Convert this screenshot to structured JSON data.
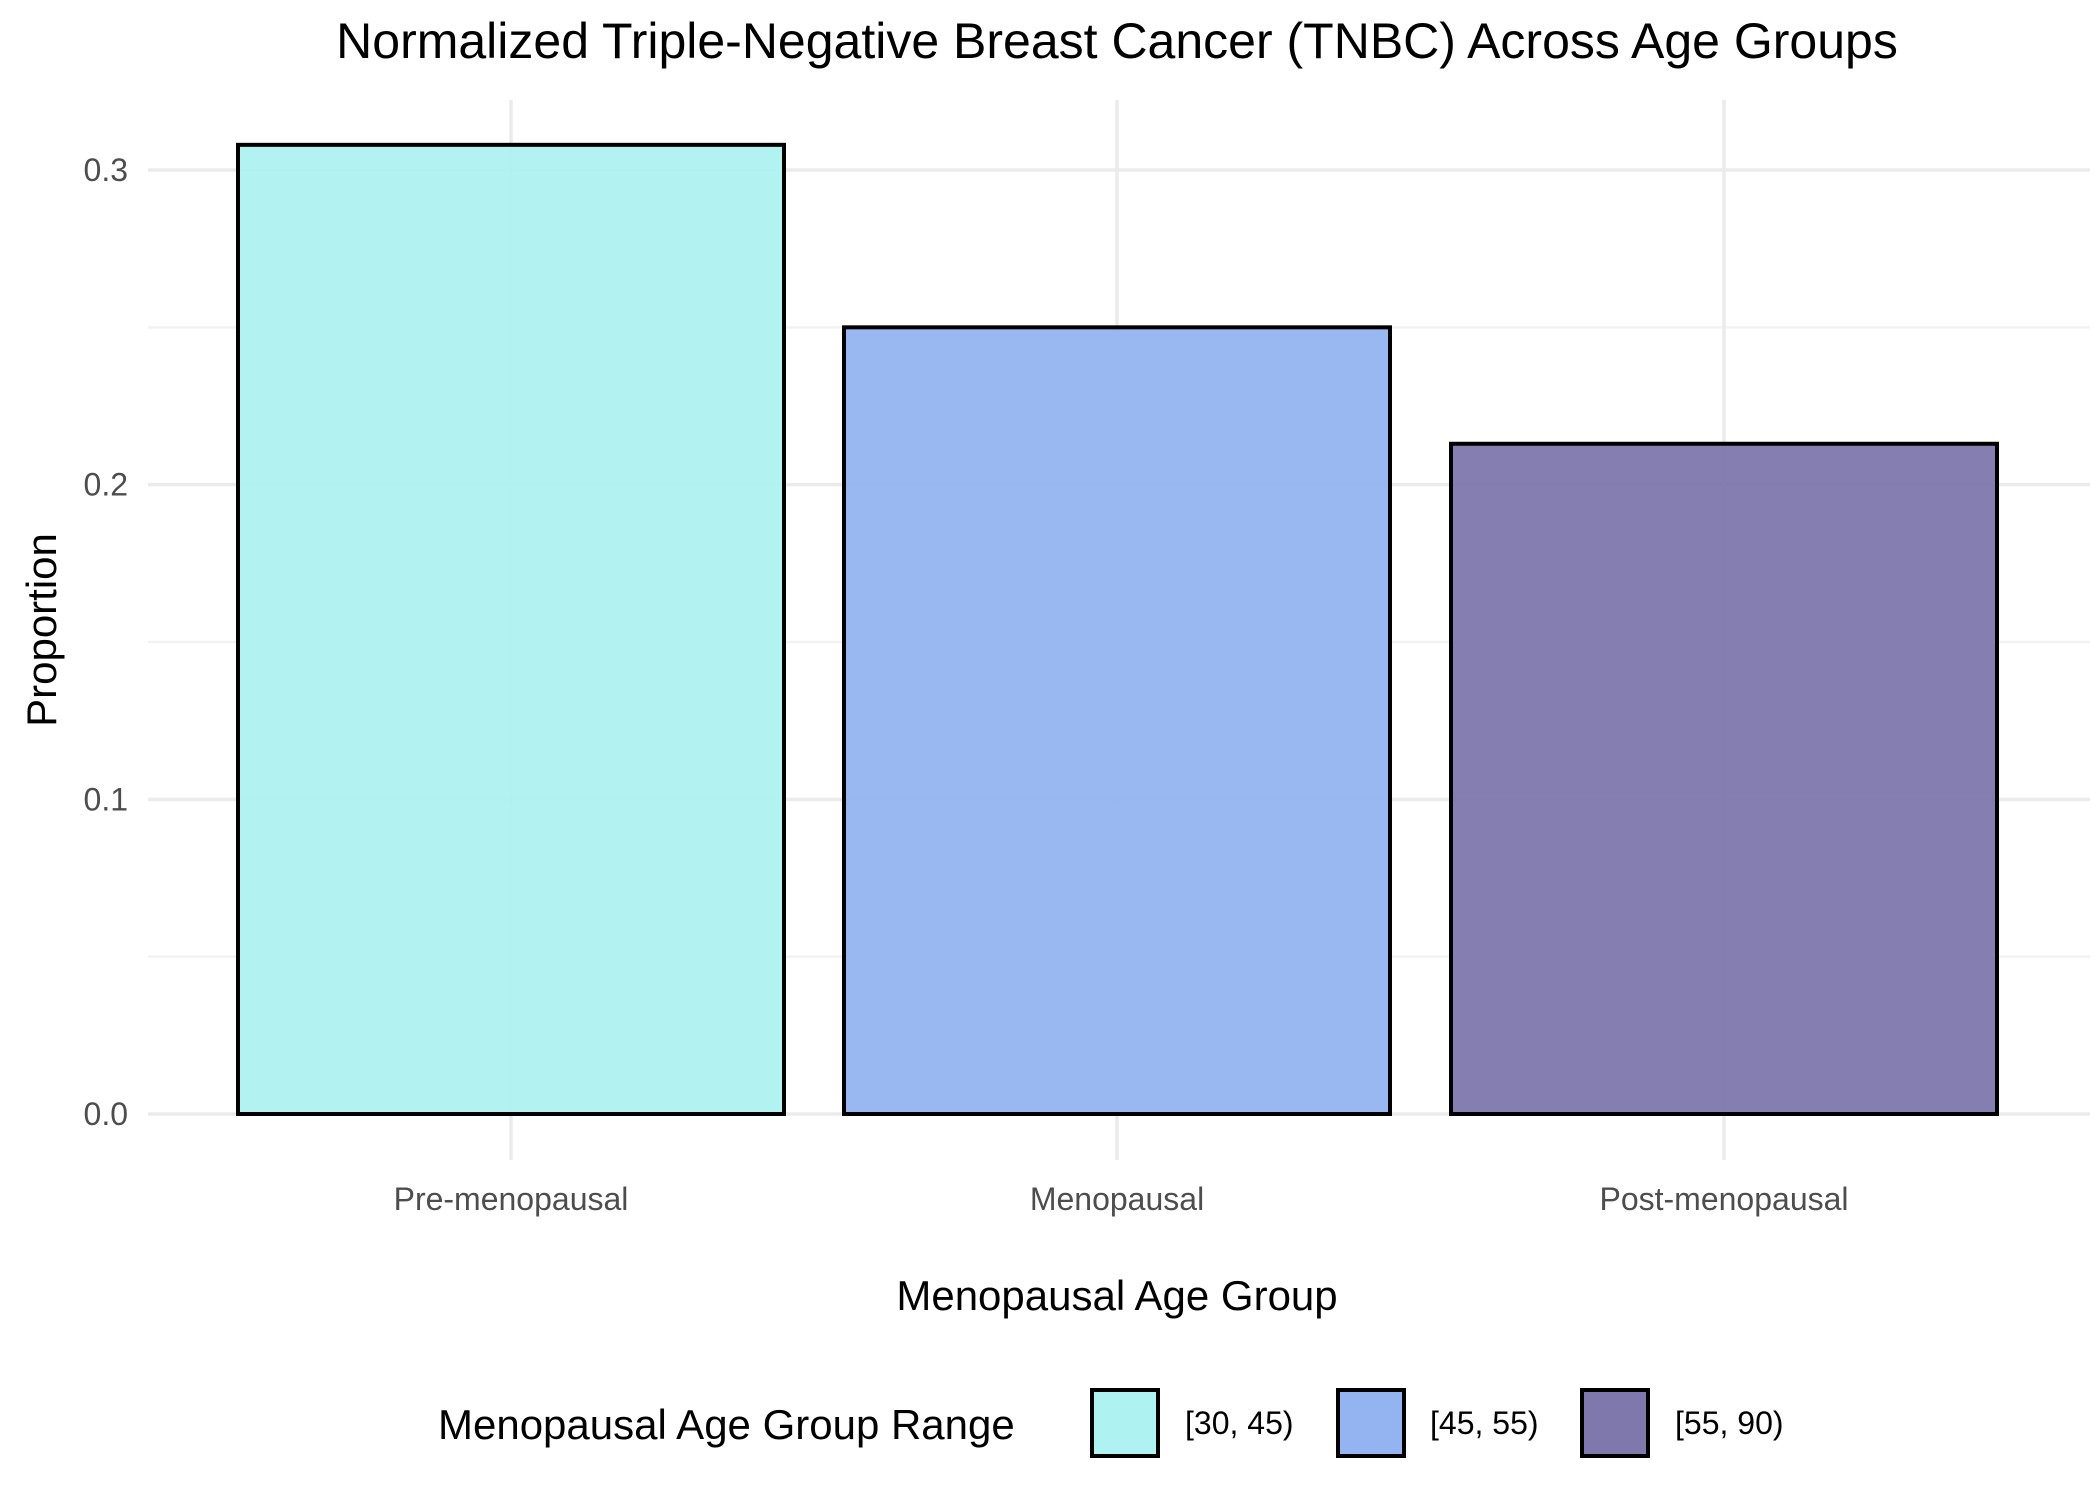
{
  "chart_data": {
    "type": "bar",
    "title": "Normalized Triple-Negative Breast Cancer (TNBC) Across Age Groups",
    "xlabel": "Menopausal Age Group",
    "ylabel": "Proportion",
    "categories": [
      "Pre-menopausal",
      "Menopausal",
      "Post-menopausal"
    ],
    "values": [
      0.308,
      0.25,
      0.213
    ],
    "colors": [
      "#AEF2F1",
      "#93B4F1",
      "#7E78AD"
    ],
    "ylim": [
      -0.015,
      0.325
    ],
    "yticks": [
      0.0,
      0.1,
      0.2,
      0.3
    ],
    "ytick_labels": [
      "0.0",
      "0.1",
      "0.2",
      "0.3"
    ],
    "grid": true,
    "legend": {
      "title": "Menopausal Age Group Range",
      "position": "bottom",
      "entries": [
        "[30, 45)",
        "[45, 55)",
        "[55, 90)"
      ]
    }
  }
}
